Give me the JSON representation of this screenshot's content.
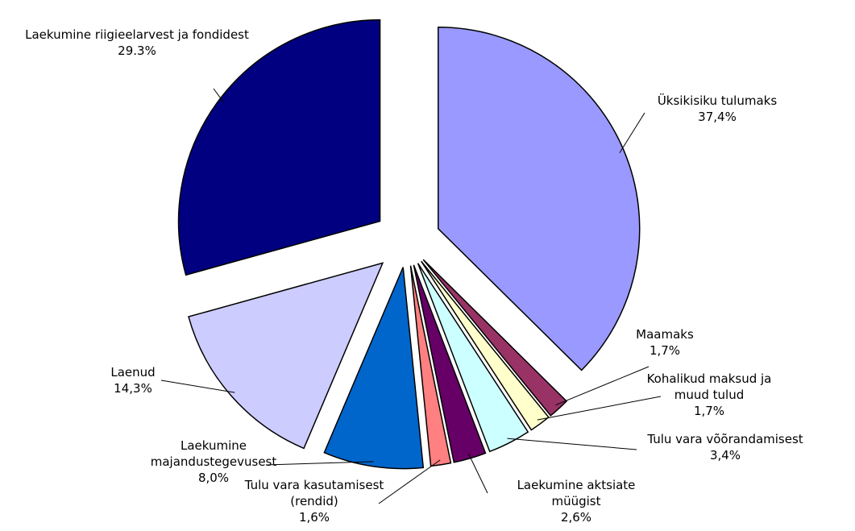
{
  "chart_data": {
    "type": "pie",
    "categories": [
      "Üksikisiku tulumaks",
      "Maamaks",
      "Kohalikud maksud ja muud tulud",
      "Tulu vara võõrandamisest",
      "Laekumine aktsiate müügist",
      "Tulu vara kasutamisest (rendid)",
      "Laekumine majandustegevusest",
      "Laenud",
      "Laekumine riigieelarvest ja fondidest"
    ],
    "values": [
      37.4,
      1.7,
      1.7,
      3.4,
      2.6,
      1.6,
      8.0,
      14.3,
      29.3
    ],
    "value_labels": [
      "37,4%",
      "1,7%",
      "1,7%",
      "3,4%",
      "2,6%",
      "1,6%",
      "8,0%",
      "14,3%",
      "29.3%"
    ],
    "colors": [
      "#9999ff",
      "#993366",
      "#ffffcc",
      "#ccffff",
      "#660066",
      "#ff8080",
      "#0066cc",
      "#ccccff",
      "#000080"
    ]
  }
}
